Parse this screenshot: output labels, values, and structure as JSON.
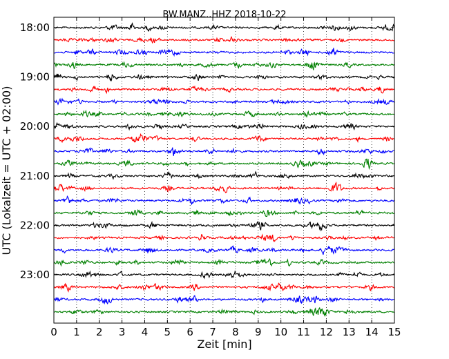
{
  "chart_data": {
    "type": "line",
    "title": "BW.MANZ..HHZ 2018-10-22",
    "xlabel": "Zeit  [min]",
    "ylabel": "UTC (Lokalzeit = UTC + 02:00)",
    "xlim": [
      0,
      15
    ],
    "x_ticks": [
      "0",
      "1",
      "2",
      "3",
      "4",
      "5",
      "6",
      "7",
      "8",
      "9",
      "10",
      "11",
      "12",
      "13",
      "14",
      "15"
    ],
    "y_ticks": [
      "18:00",
      "19:00",
      "20:00",
      "21:00",
      "22:00",
      "23:00"
    ],
    "grid": "vertical dotted lines at every minute",
    "trace_minutes": 15,
    "trace_colors": [
      "#000000",
      "#ff0000",
      "#0000ff",
      "#008000"
    ],
    "traces": [
      {
        "start": "18:00"
      },
      {
        "start": "18:15"
      },
      {
        "start": "18:30"
      },
      {
        "start": "18:45"
      },
      {
        "start": "19:00"
      },
      {
        "start": "19:15"
      },
      {
        "start": "19:30"
      },
      {
        "start": "19:45"
      },
      {
        "start": "20:00"
      },
      {
        "start": "20:15"
      },
      {
        "start": "20:30"
      },
      {
        "start": "20:45"
      },
      {
        "start": "21:00"
      },
      {
        "start": "21:15"
      },
      {
        "start": "21:30"
      },
      {
        "start": "21:45"
      },
      {
        "start": "22:00"
      },
      {
        "start": "22:15"
      },
      {
        "start": "22:30"
      },
      {
        "start": "22:45"
      },
      {
        "start": "23:00"
      },
      {
        "start": "23:15"
      },
      {
        "start": "23:30"
      },
      {
        "start": "23:45"
      }
    ]
  }
}
